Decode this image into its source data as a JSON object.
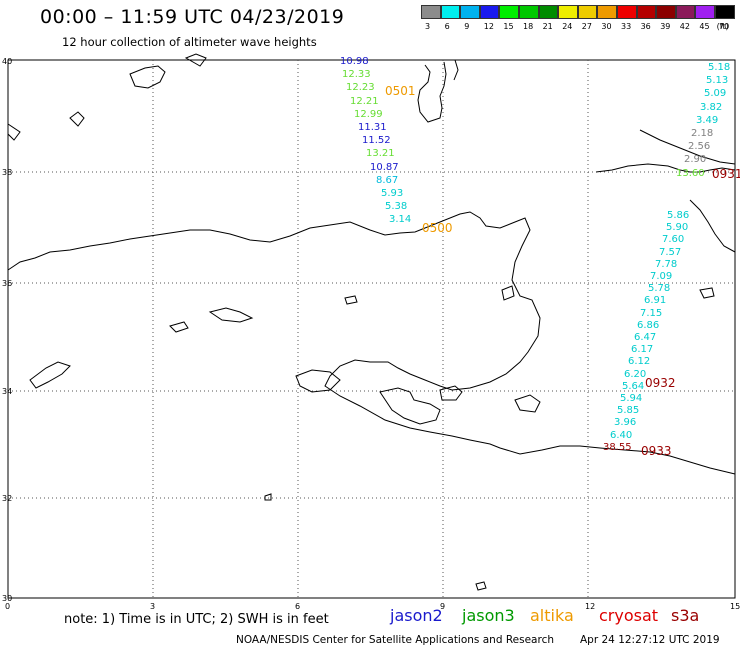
{
  "title": "00:00 – 11:59 UTC 04/23/2019",
  "subtitle": "12 hour collection of altimeter wave heights",
  "note": "note: 1) Time is in UTC; 2) SWH is in feet",
  "footer": "NOAA/NESDIS Center for Satellite Applications and Research",
  "generated": "Apr 24 12:27:12 UTC 2019",
  "color_scale": {
    "unit": "(ft)",
    "bins": [
      {
        "label": "3",
        "color": "#8c8c8c"
      },
      {
        "label": "6",
        "color": "#00eeee"
      },
      {
        "label": "9",
        "color": "#00b2ee"
      },
      {
        "label": "12",
        "color": "#1a1aee"
      },
      {
        "label": "15",
        "color": "#00ee00"
      },
      {
        "label": "18",
        "color": "#00c800"
      },
      {
        "label": "21",
        "color": "#008c00"
      },
      {
        "label": "24",
        "color": "#eeee00"
      },
      {
        "label": "27",
        "color": "#eecc00"
      },
      {
        "label": "30",
        "color": "#ee9a00"
      },
      {
        "label": "33",
        "color": "#ee0000"
      },
      {
        "label": "36",
        "color": "#b40000"
      },
      {
        "label": "39",
        "color": "#8b0000"
      },
      {
        "label": "42",
        "color": "#8b1a5a"
      },
      {
        "label": "45",
        "color": "#a020f0"
      },
      {
        "label": "70",
        "color": "#000000"
      }
    ]
  },
  "satellites": [
    {
      "name": "jason2",
      "color": "#1a1acc"
    },
    {
      "name": "jason3",
      "color": "#009900"
    },
    {
      "name": "altika",
      "color": "#ee9a00"
    },
    {
      "name": "cryosat",
      "color": "#dd0000"
    },
    {
      "name": "s3a",
      "color": "#990000"
    }
  ],
  "axes": {
    "lat_labels": [
      "40",
      "38",
      "36",
      "34",
      "32",
      "30"
    ],
    "lon_labels": [
      "0",
      "3",
      "6",
      "9",
      "12",
      "15"
    ]
  },
  "tracks": [
    {
      "pass_label": "0501",
      "pass_color": "#ee9a00",
      "points": [
        {
          "v": "10.98",
          "c": "#1a1acc"
        },
        {
          "v": "12.33",
          "c": "#66dd33"
        },
        {
          "v": "12.23",
          "c": "#66dd33"
        },
        {
          "v": "12.21",
          "c": "#66dd33"
        },
        {
          "v": "12.99",
          "c": "#66dd33"
        },
        {
          "v": "11.31",
          "c": "#1a1acc"
        },
        {
          "v": "11.52",
          "c": "#1a1acc"
        },
        {
          "v": "13.21",
          "c": "#66dd33"
        },
        {
          "v": "10.87",
          "c": "#1a1acc"
        },
        {
          "v": "8.67",
          "c": "#00bbdd"
        },
        {
          "v": "5.93",
          "c": "#00cccc"
        },
        {
          "v": "5.38",
          "c": "#00cccc"
        },
        {
          "v": "3.14",
          "c": "#00cccc"
        }
      ]
    },
    {
      "pass_label": "0500",
      "pass_color": "#ee9a00"
    },
    {
      "pass_label": "0931",
      "pass_color": "#990000",
      "points": [
        {
          "v": "5.18",
          "c": "#00cccc"
        },
        {
          "v": "5.13",
          "c": "#00cccc"
        },
        {
          "v": "5.09",
          "c": "#00cccc"
        },
        {
          "v": "3.82",
          "c": "#00cccc"
        },
        {
          "v": "3.49",
          "c": "#00cccc"
        },
        {
          "v": "2.18",
          "c": "#808080"
        },
        {
          "v": "2.56",
          "c": "#808080"
        },
        {
          "v": "2.90",
          "c": "#808080"
        },
        {
          "v": "13.60",
          "c": "#66dd33"
        }
      ]
    },
    {
      "pass_label": "0932",
      "pass_color": "#990000",
      "points": [
        {
          "v": "5.86",
          "c": "#00cccc"
        },
        {
          "v": "5.90",
          "c": "#00cccc"
        },
        {
          "v": "7.60",
          "c": "#00cccc"
        },
        {
          "v": "7.57",
          "c": "#00cccc"
        },
        {
          "v": "7.78",
          "c": "#00cccc"
        },
        {
          "v": "7.09",
          "c": "#00cccc"
        },
        {
          "v": "5.78",
          "c": "#00cccc"
        },
        {
          "v": "6.91",
          "c": "#00cccc"
        },
        {
          "v": "7.15",
          "c": "#00cccc"
        },
        {
          "v": "6.86",
          "c": "#00cccc"
        },
        {
          "v": "6.47",
          "c": "#00cccc"
        },
        {
          "v": "6.17",
          "c": "#00cccc"
        },
        {
          "v": "6.12",
          "c": "#00cccc"
        },
        {
          "v": "6.20",
          "c": "#00cccc"
        },
        {
          "v": "5.64",
          "c": "#00cccc"
        },
        {
          "v": "5.94",
          "c": "#00cccc"
        },
        {
          "v": "5.85",
          "c": "#00cccc"
        },
        {
          "v": "3.96",
          "c": "#00cccc"
        },
        {
          "v": "6.40",
          "c": "#00cccc"
        },
        {
          "v": "38.55",
          "c": "#990000"
        }
      ]
    },
    {
      "pass_label": "0933",
      "pass_color": "#990000"
    }
  ]
}
